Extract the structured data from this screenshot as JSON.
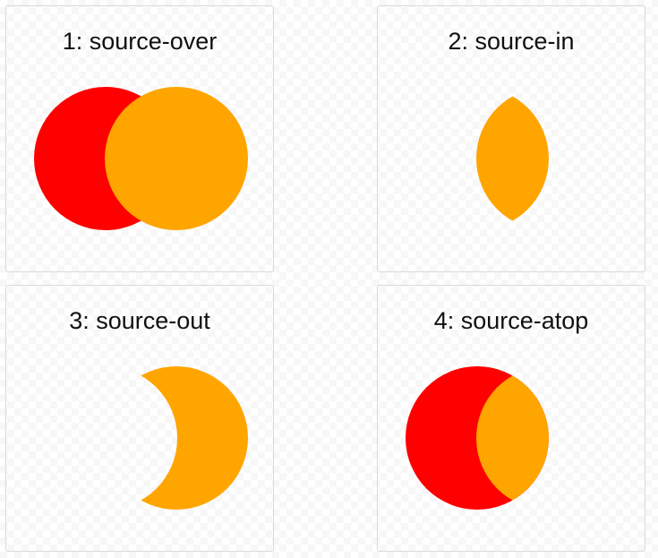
{
  "colors": {
    "destination": "#ff0000",
    "source": "#ffa500",
    "panel_border": "#d9d9d9"
  },
  "panels": [
    {
      "label": "1: source-over",
      "mode": "source-over"
    },
    {
      "label": "2: source-in",
      "mode": "source-in"
    },
    {
      "label": "3: source-out",
      "mode": "source-out"
    },
    {
      "label": "4: source-atop",
      "mode": "source-atop"
    }
  ]
}
